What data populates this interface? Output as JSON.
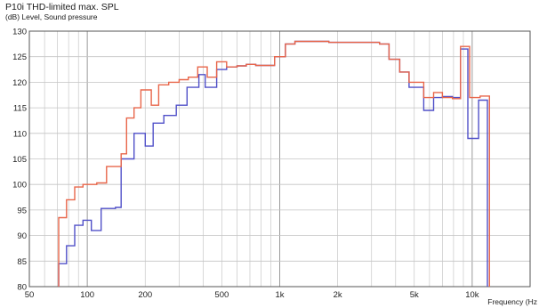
{
  "chart_data": {
    "type": "line",
    "title": "P10i THD-limited max. SPL",
    "ylabel": "(dB)  Level, Sound pressure",
    "xlabel": "Frequency  (Hz",
    "x_scale": "log",
    "xlim": [
      50,
      20000
    ],
    "ylim": [
      80,
      130
    ],
    "y_ticks": [
      80,
      85,
      90,
      95,
      100,
      105,
      110,
      115,
      120,
      125,
      130
    ],
    "x_ticks": [
      {
        "value": 50,
        "label": "50"
      },
      {
        "value": 100,
        "label": "100"
      },
      {
        "value": 200,
        "label": "200"
      },
      {
        "value": 500,
        "label": "500"
      },
      {
        "value": 1000,
        "label": "1k"
      },
      {
        "value": 2000,
        "label": "2k"
      },
      {
        "value": 5000,
        "label": "5k"
      },
      {
        "value": 10000,
        "label": "10k"
      }
    ],
    "grid": true,
    "series": [
      {
        "color": "#e8664a",
        "points": [
          [
            71,
            80
          ],
          [
            71,
            93.5
          ],
          [
            78,
            93.5
          ],
          [
            78,
            97
          ],
          [
            86,
            97
          ],
          [
            86,
            99.5
          ],
          [
            95,
            99.5
          ],
          [
            95,
            100
          ],
          [
            112,
            100
          ],
          [
            112,
            100.3
          ],
          [
            126,
            100.3
          ],
          [
            126,
            103.5
          ],
          [
            150,
            103.5
          ],
          [
            150,
            106
          ],
          [
            160,
            106
          ],
          [
            160,
            113
          ],
          [
            175,
            113
          ],
          [
            175,
            115
          ],
          [
            190,
            115
          ],
          [
            190,
            118.5
          ],
          [
            215,
            118.5
          ],
          [
            215,
            115.5
          ],
          [
            235,
            115.5
          ],
          [
            235,
            119.5
          ],
          [
            265,
            119.5
          ],
          [
            265,
            120
          ],
          [
            300,
            120
          ],
          [
            300,
            120.5
          ],
          [
            335,
            120.5
          ],
          [
            335,
            121
          ],
          [
            375,
            121
          ],
          [
            375,
            123
          ],
          [
            420,
            123
          ],
          [
            420,
            121
          ],
          [
            470,
            121
          ],
          [
            470,
            124
          ],
          [
            530,
            124
          ],
          [
            530,
            123
          ],
          [
            600,
            123
          ],
          [
            600,
            123.2
          ],
          [
            670,
            123.2
          ],
          [
            670,
            123.5
          ],
          [
            750,
            123.5
          ],
          [
            750,
            123.3
          ],
          [
            940,
            123.3
          ],
          [
            940,
            125
          ],
          [
            1070,
            125
          ],
          [
            1070,
            127.5
          ],
          [
            1200,
            127.5
          ],
          [
            1200,
            128
          ],
          [
            1800,
            128
          ],
          [
            1800,
            127.8
          ],
          [
            3300,
            127.8
          ],
          [
            3300,
            127.5
          ],
          [
            3700,
            127.5
          ],
          [
            3700,
            124.5
          ],
          [
            4200,
            124.5
          ],
          [
            4200,
            122
          ],
          [
            4700,
            122
          ],
          [
            4700,
            120
          ],
          [
            5600,
            120
          ],
          [
            5600,
            117
          ],
          [
            6300,
            117
          ],
          [
            6300,
            118
          ],
          [
            7000,
            118
          ],
          [
            7000,
            117
          ],
          [
            7900,
            117
          ],
          [
            7900,
            116.8
          ],
          [
            8700,
            116.8
          ],
          [
            8700,
            127
          ],
          [
            9700,
            127
          ],
          [
            9700,
            117
          ],
          [
            11000,
            117
          ],
          [
            11000,
            117.3
          ],
          [
            12300,
            117.3
          ],
          [
            12300,
            80
          ]
        ]
      },
      {
        "color": "#5050c8",
        "points": [
          [
            71,
            80
          ],
          [
            71,
            84.5
          ],
          [
            78,
            84.5
          ],
          [
            78,
            88
          ],
          [
            86,
            88
          ],
          [
            86,
            92
          ],
          [
            95,
            92
          ],
          [
            95,
            93
          ],
          [
            105,
            93
          ],
          [
            105,
            91
          ],
          [
            118,
            91
          ],
          [
            118,
            95.3
          ],
          [
            140,
            95.3
          ],
          [
            140,
            95.5
          ],
          [
            150,
            95.5
          ],
          [
            150,
            105
          ],
          [
            175,
            105
          ],
          [
            175,
            110
          ],
          [
            200,
            110
          ],
          [
            200,
            107.5
          ],
          [
            220,
            107.5
          ],
          [
            220,
            112
          ],
          [
            250,
            112
          ],
          [
            250,
            113.5
          ],
          [
            290,
            113.5
          ],
          [
            290,
            115.5
          ],
          [
            330,
            115.5
          ],
          [
            330,
            119
          ],
          [
            380,
            119
          ],
          [
            380,
            121.5
          ],
          [
            410,
            121.5
          ],
          [
            410,
            119
          ],
          [
            470,
            119
          ],
          [
            470,
            122.5
          ],
          [
            530,
            122.5
          ],
          [
            530,
            123
          ],
          [
            600,
            123
          ],
          [
            600,
            123.2
          ],
          [
            670,
            123.2
          ],
          [
            670,
            123.5
          ],
          [
            750,
            123.5
          ],
          [
            750,
            123.3
          ],
          [
            940,
            123.3
          ],
          [
            940,
            125
          ],
          [
            1070,
            125
          ],
          [
            1070,
            127.5
          ],
          [
            1200,
            127.5
          ],
          [
            1200,
            128
          ],
          [
            1800,
            128
          ],
          [
            1800,
            127.8
          ],
          [
            3300,
            127.8
          ],
          [
            3300,
            127.5
          ],
          [
            3700,
            127.5
          ],
          [
            3700,
            124.5
          ],
          [
            4200,
            124.5
          ],
          [
            4200,
            122
          ],
          [
            4700,
            122
          ],
          [
            4700,
            119
          ],
          [
            5600,
            119
          ],
          [
            5600,
            114.5
          ],
          [
            6300,
            114.5
          ],
          [
            6300,
            117
          ],
          [
            7000,
            117
          ],
          [
            7000,
            117.2
          ],
          [
            7900,
            117.2
          ],
          [
            7900,
            117
          ],
          [
            8700,
            117
          ],
          [
            8700,
            126.5
          ],
          [
            9500,
            126.5
          ],
          [
            9500,
            109
          ],
          [
            10800,
            109
          ],
          [
            10800,
            116.5
          ],
          [
            12000,
            116.5
          ],
          [
            12000,
            80
          ]
        ]
      }
    ]
  }
}
